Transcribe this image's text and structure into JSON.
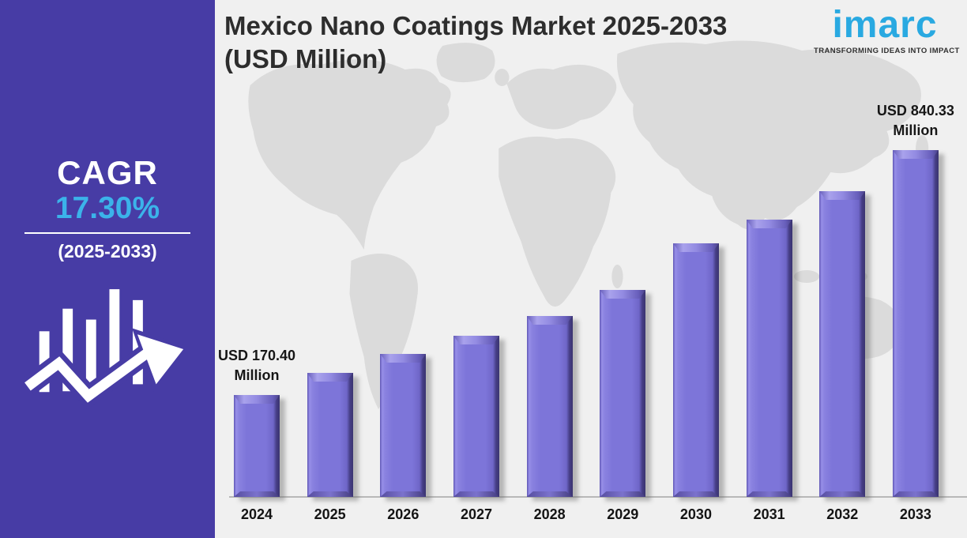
{
  "sidebar": {
    "bg_color": "#473CA5",
    "cagr": {
      "label": "CAGR",
      "value": "17.30%",
      "period": "(2025-2033)",
      "value_color": "#3BB3EA"
    },
    "icon": "growth-chart-arrow-icon"
  },
  "header": {
    "title_line1": "Mexico Nano Coatings Market 2025-2033",
    "title_line2": "(USD Million)"
  },
  "logo": {
    "name": "imarc",
    "tagline": "TRANSFORMING IDEAS INTO IMPACT",
    "color": "#29A9E1"
  },
  "chart_data": {
    "type": "bar",
    "title": "Mexico Nano Coatings Market 2025-2033 (USD Million)",
    "unit": "USD Million",
    "categories": [
      "2024",
      "2025",
      "2026",
      "2027",
      "2028",
      "2029",
      "2030",
      "2031",
      "2032",
      "2033"
    ],
    "values": [
      170.4,
      230.9,
      282.8,
      332.5,
      386.5,
      457.8,
      585.3,
      650.2,
      728.0,
      840.33
    ],
    "values_note": "2024 and 2033 read from on-chart data labels; intermediate values estimated from bar heights",
    "labeled_points": [
      {
        "category": "2024",
        "label_line1": "USD 170.40",
        "label_line2": "Million"
      },
      {
        "category": "2033",
        "label_line1": "USD 840.33",
        "label_line2": "Million"
      }
    ],
    "bar_color": "#7D75D9",
    "bar_edge_light": "#978FE8",
    "bar_edge_dark": "#3B3470",
    "background_color": "#F0F0F0",
    "map_color": "#DBDBDB",
    "axis": {
      "x_labels_shown": true,
      "y_axis_shown": false,
      "gridlines": false,
      "legend": "none"
    },
    "height_map": {
      "v0": 170.4,
      "h0": 129,
      "v1": 840.33,
      "h1": 439
    }
  }
}
